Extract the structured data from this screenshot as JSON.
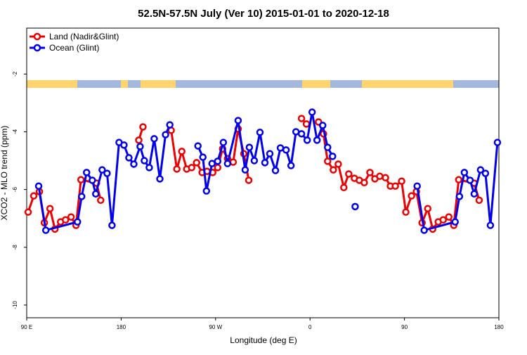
{
  "chart_data": {
    "type": "line",
    "title": "52.5N-57.5N July (Ver 10)   2015-01-01 to 2020-12-18",
    "x_label": "Longitude (deg E)",
    "y_label": "XCO2 - MLO trend (ppm)",
    "xlim": [
      -270,
      180
    ],
    "xticks": [
      {
        "value": -270,
        "label": "90 E"
      },
      {
        "value": -180,
        "label": "180"
      },
      {
        "value": -90,
        "label": "90 W"
      },
      0,
      {
        "value": 90,
        "label": "90"
      },
      {
        "value": 180,
        "label": "180"
      }
    ],
    "ylim": [
      -10.44,
      -0.41
    ],
    "yticks": [
      -2,
      -4,
      -6,
      -8,
      -10
    ],
    "legend": "top-left",
    "series": [
      {
        "name": "Land (Nadir&Glint)",
        "color": "#ee0000",
        "x": [
          -268.6,
          -263.3,
          -257.9,
          -253.2,
          -247.8,
          -243.1,
          -237.7,
          -233.0,
          -227.7,
          -223.0,
          -218.3,
          -203.5,
          -199.5,
          null,
          -163.2,
          -159.2,
          null,
          -132.3,
          -126.9,
          -122.2,
          -117.5,
          -112.8,
          -108.1,
          -102.8,
          -98.1,
          -92.7,
          -88.0,
          -83.3,
          -78.6,
          -73.2,
          -68.5,
          -63.1,
          -58.4,
          null,
          -8.1,
          -3.4,
          null,
          8.1,
          12.8,
          16.8,
          22.2,
          26.9,
          32.2,
          36.9,
          42.3,
          47.0,
          51.7,
          57.1,
          61.8,
          66.5,
          71.9,
          76.6,
          81.3,
          87.3,
          91.3,
          96.7,
          101.4,
          106.8,
          112.2,
          116.9,
          122.2,
          126.9,
          132.3,
          137.0,
          141.7,
          156.5,
          161.2
        ],
        "values": [
          -6.78,
          -6.22,
          -6.07,
          -7.15,
          -6.66,
          -7.37,
          -7.12,
          -7.05,
          -6.95,
          -7.24,
          -5.66,
          -5.78,
          -6.37,
          null,
          -4.29,
          -3.83,
          null,
          -3.95,
          -5.29,
          -4.68,
          -5.29,
          -5.24,
          -5.07,
          -5.41,
          -5.37,
          -5.41,
          -5.24,
          -4.59,
          -4.93,
          -5.05,
          -3.9,
          -4.76,
          -5.68,
          null,
          -3.54,
          -3.73,
          null,
          -3.66,
          -4.07,
          -5.02,
          -5.32,
          -5.12,
          -5.93,
          -5.46,
          -5.61,
          -5.68,
          -5.76,
          -5.41,
          -5.63,
          -5.54,
          -5.59,
          -5.88,
          -5.88,
          -5.71,
          -6.78,
          -6.22,
          -6.07,
          -7.15,
          -6.66,
          -7.37,
          -7.12,
          -7.05,
          -6.95,
          -7.24,
          -5.66,
          -5.78,
          -6.37
        ]
      },
      {
        "name": "Ocean (Glint)",
        "color": "#0000ee",
        "x": [
          -258.6,
          -251.8,
          -221.6,
          -217.6,
          -212.9,
          -207.5,
          -204.2,
          -198.1,
          -193.4,
          -188.7,
          -182.0,
          -177.3,
          -172.6,
          -167.9,
          -161.9,
          -157.9,
          -153.2,
          -148.5,
          -143.1,
          -137.7,
          -133.6,
          null,
          -106.8,
          -102.1,
          -98.7,
          -93.4,
          -88.0,
          -82.6,
          -78.6,
          -68.5,
          -61.8,
          -57.8,
          -53.1,
          -47.7,
          -43.0,
          -38.3,
          -32.9,
          -28.2,
          -22.8,
          -18.1,
          -13.4,
          -8.1,
          -2.7,
          2.0,
          6.7,
          12.1,
          16.8,
          21.5,
          null,
          43.0,
          null,
          102.1,
          108.8,
          138.3,
          142.4,
          147.1,
          152.5,
          156.5,
          162.5,
          167.2,
          171.9,
          178.6
        ],
        "values": [
          -5.88,
          -7.41,
          -7.12,
          -6.24,
          -5.41,
          -5.68,
          -6.15,
          -5.32,
          -5.44,
          -7.24,
          -4.37,
          -4.46,
          -4.9,
          -5.12,
          -4.51,
          -5.0,
          -5.24,
          -4.24,
          -5.63,
          -4.1,
          -3.76,
          null,
          -4.49,
          -4.88,
          -6.05,
          -5.1,
          -5.02,
          -4.37,
          -5.1,
          -3.61,
          -5.32,
          -4.54,
          -5.0,
          -4.02,
          -5.07,
          -4.76,
          -5.34,
          -4.56,
          -4.63,
          -5.17,
          -4.0,
          -4.07,
          -4.29,
          -3.32,
          -4.29,
          -3.78,
          -4.54,
          -4.85,
          null,
          -6.59,
          null,
          -5.88,
          -7.41,
          -7.12,
          -6.24,
          -5.41,
          -5.68,
          -6.15,
          -5.32,
          -5.44,
          -7.24,
          -4.37
        ]
      }
    ]
  }
}
